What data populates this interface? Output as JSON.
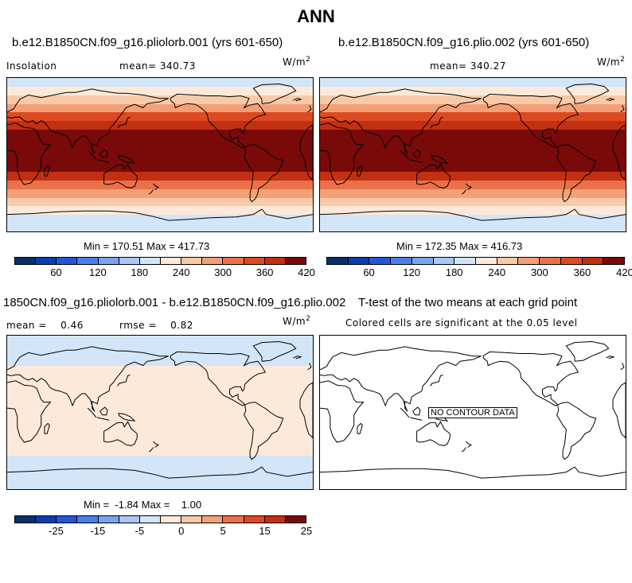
{
  "title": "ANN",
  "units": "W/m",
  "units_sup": "2",
  "colors": {
    "p1": [
      "#08306b",
      "#0a3fb0",
      "#1f58d8",
      "#4b7ee8",
      "#7aa3f0",
      "#a9c6f5",
      "#d3e5f8",
      "#fde9d9",
      "#f9caa8",
      "#f3a078",
      "#ea7149",
      "#dd4a22",
      "#c23012",
      "#7a0a0a"
    ],
    "diff": [
      "#08306b",
      "#0a3fb0",
      "#1f58d8",
      "#4b7ee8",
      "#7aa3f0",
      "#a9c6f5",
      "#d3e5f8",
      "#fde9d9",
      "#f9caa8",
      "#f3a078",
      "#ea7149",
      "#dd4a22",
      "#c23012",
      "#7a0a0a"
    ]
  },
  "panels": {
    "p1": {
      "title": "b.e12.B1850CN.f09_g16.pliolorb.001 (yrs 601-650)",
      "left_label": "Insolation",
      "mean": "mean= 340.73",
      "minmax": "Min = 170.51 Max = 417.73"
    },
    "p2": {
      "title": "b.e12.B1850CN.f09_g16.plio.002 (yrs 601-650)",
      "left_label": "",
      "mean": "mean= 340.27",
      "minmax": "Min = 172.35 Max = 416.73"
    },
    "p3": {
      "title": "1850CN.f09_g16.pliolorb.001 - b.e12.B1850CN.f09_g16.plio.002",
      "mean": "mean =    0.46",
      "rmse": "rmse =    0.82",
      "minmax": "Min =  -1.84 Max =    1.00"
    },
    "p4": {
      "title": "T-test of the two means at each grid point",
      "subtitle": "Colored cells are significant at the 0.05 level",
      "nodata": "NO CONTOUR DATA"
    }
  },
  "chart_data": [
    {
      "type": "heatmap",
      "title": "b.e12.B1850CN.f09_g16.pliolorb.001 (yrs 601-650)",
      "variable": "Insolation",
      "units": "W/m^2",
      "mean": 340.73,
      "min": 170.51,
      "max": 417.73,
      "colorbar_ticks": [
        "60",
        "120",
        "180",
        "240",
        "300",
        "360",
        "420"
      ],
      "levels": [
        30,
        60,
        90,
        120,
        150,
        180,
        210,
        240,
        270,
        300,
        330,
        360,
        390,
        420
      ],
      "zonal_bands": [
        {
          "lat": [
            -90,
            -70
          ],
          "value": 180
        },
        {
          "lat": [
            -70,
            -60
          ],
          "value": 210
        },
        {
          "lat": [
            -60,
            -50
          ],
          "value": 240
        },
        {
          "lat": [
            -50,
            -40
          ],
          "value": 270
        },
        {
          "lat": [
            -40,
            -30
          ],
          "value": 300
        },
        {
          "lat": [
            -30,
            -20
          ],
          "value": 360
        },
        {
          "lat": [
            -20,
            20
          ],
          "value": 410
        },
        {
          "lat": [
            20,
            30
          ],
          "value": 390
        },
        {
          "lat": [
            30,
            40
          ],
          "value": 360
        },
        {
          "lat": [
            40,
            50
          ],
          "value": 330
        },
        {
          "lat": [
            50,
            60
          ],
          "value": 270
        },
        {
          "lat": [
            60,
            70
          ],
          "value": 240
        },
        {
          "lat": [
            70,
            80
          ],
          "value": 210
        },
        {
          "lat": [
            80,
            90
          ],
          "value": 180
        }
      ]
    },
    {
      "type": "heatmap",
      "title": "b.e12.B1850CN.f09_g16.plio.002 (yrs 601-650)",
      "units": "W/m^2",
      "mean": 340.27,
      "min": 172.35,
      "max": 416.73,
      "colorbar_ticks": [
        "60",
        "120",
        "180",
        "240",
        "300",
        "360",
        "420"
      ]
    },
    {
      "type": "heatmap",
      "title": "1850CN.f09_g16.pliolorb.001 - b.e12.B1850CN.f09_g16.plio.002",
      "units": "W/m^2",
      "mean": 0.46,
      "rmse": 0.82,
      "min": -1.84,
      "max": 1.0,
      "colorbar_ticks": [
        "-25",
        "-15",
        "-5",
        "0",
        "5",
        "15",
        "25"
      ],
      "zonal_bands": [
        {
          "lat": [
            -90,
            -50
          ],
          "value": -1
        },
        {
          "lat": [
            -50,
            55
          ],
          "value": 1
        },
        {
          "lat": [
            55,
            90
          ],
          "value": -1
        }
      ]
    },
    {
      "type": "heatmap",
      "title": "T-test of the two means at each grid point",
      "subtitle": "Colored cells are significant at the 0.05 level",
      "annotation": "NO CONTOUR DATA"
    }
  ]
}
